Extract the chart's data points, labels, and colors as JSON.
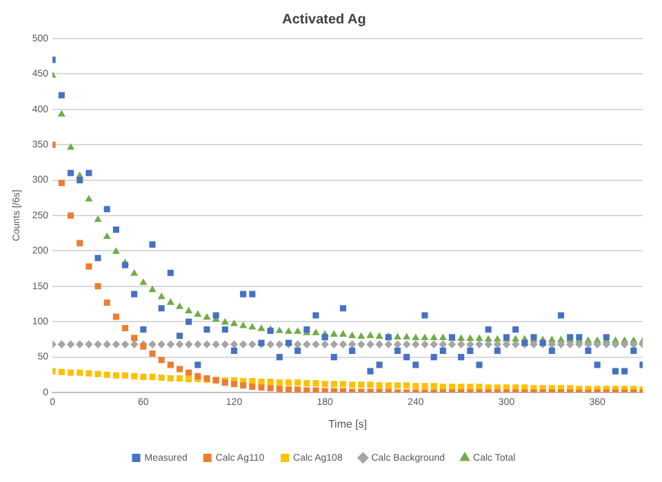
{
  "chart_data": {
    "type": "scatter",
    "title": "Activated Ag",
    "xlabel": "Time [s]",
    "ylabel": "Counts [/6s]",
    "x": [
      0,
      6,
      12,
      18,
      24,
      30,
      36,
      42,
      48,
      54,
      60,
      66,
      72,
      78,
      84,
      90,
      96,
      102,
      108,
      114,
      120,
      126,
      132,
      138,
      144,
      150,
      156,
      162,
      168,
      174,
      180,
      186,
      192,
      198,
      204,
      210,
      216,
      222,
      228,
      234,
      240,
      246,
      252,
      258,
      264,
      270,
      276,
      282,
      288,
      294,
      300,
      306,
      312,
      318,
      324,
      330,
      336,
      342,
      348,
      354,
      360,
      366,
      372,
      378,
      384,
      390
    ],
    "xlim": [
      0,
      390
    ],
    "xticks": [
      0,
      60,
      120,
      180,
      240,
      300,
      360
    ],
    "ylim": [
      0,
      500
    ],
    "yticks": [
      0,
      50,
      100,
      150,
      200,
      250,
      300,
      350,
      400,
      450,
      500
    ],
    "grid": "y",
    "legend": "bottom",
    "series": [
      {
        "name": "Measured",
        "color": "#4472c4",
        "marker": "square",
        "values": [
          470,
          420,
          310,
          300,
          310,
          190,
          259,
          230,
          180,
          139,
          89,
          209,
          119,
          169,
          80,
          100,
          39,
          89,
          109,
          89,
          59,
          139,
          139,
          70,
          87,
          50,
          70,
          59,
          89,
          109,
          78,
          50,
          119,
          59,
          null,
          30,
          39,
          78,
          59,
          50,
          39,
          109,
          50,
          59,
          78,
          50,
          59,
          39,
          89,
          59,
          78,
          89,
          70,
          78,
          70,
          59,
          109,
          78,
          78,
          59,
          39,
          78,
          30,
          30,
          59,
          39
        ]
      },
      {
        "name": "Calc Ag110",
        "color": "#ed7d31",
        "marker": "square",
        "values": [
          350,
          296,
          250,
          211,
          178,
          150,
          127,
          107,
          91,
          77,
          65,
          55,
          46,
          39,
          33,
          28,
          23,
          20,
          17,
          14,
          12,
          10,
          8,
          7,
          6,
          5,
          4,
          4,
          3,
          3,
          2,
          2,
          2,
          1,
          1,
          1,
          1,
          1,
          0,
          0,
          0,
          0,
          0,
          0,
          0,
          0,
          0,
          0,
          0,
          0,
          0,
          0,
          0,
          0,
          0,
          0,
          0,
          0,
          0,
          0,
          0,
          0,
          0,
          0,
          0,
          0
        ]
      },
      {
        "name": "Calc Ag108",
        "color": "#ffc000",
        "marker": "square",
        "values": [
          30,
          29,
          28,
          28,
          27,
          26,
          25,
          24,
          24,
          23,
          22,
          22,
          21,
          20,
          20,
          19,
          19,
          18,
          18,
          17,
          17,
          16,
          16,
          15,
          15,
          14,
          14,
          14,
          13,
          13,
          12,
          12,
          12,
          11,
          11,
          11,
          10,
          10,
          10,
          10,
          9,
          9,
          9,
          8,
          8,
          8,
          8,
          8,
          7,
          7,
          7,
          7,
          7,
          6,
          6,
          6,
          6,
          6,
          5,
          5,
          5,
          5,
          5,
          5,
          5,
          4
        ]
      },
      {
        "name": "Calc Background",
        "color": "#a5a5a5",
        "marker": "diamond",
        "values": [
          68,
          68,
          68,
          68,
          68,
          68,
          68,
          68,
          68,
          68,
          68,
          68,
          68,
          68,
          68,
          68,
          68,
          68,
          68,
          68,
          68,
          68,
          68,
          68,
          68,
          68,
          68,
          68,
          68,
          68,
          68,
          68,
          68,
          68,
          68,
          68,
          68,
          68,
          68,
          68,
          68,
          68,
          68,
          68,
          68,
          68,
          68,
          68,
          68,
          68,
          68,
          68,
          68,
          68,
          68,
          68,
          68,
          68,
          68,
          68,
          68,
          68,
          68,
          68,
          68,
          68
        ]
      },
      {
        "name": "Calc Total",
        "color": "#70ad47",
        "marker": "triangle",
        "values": [
          448,
          393,
          346,
          306,
          273,
          244,
          220,
          199,
          183,
          168,
          155,
          145,
          135,
          127,
          121,
          115,
          110,
          106,
          103,
          99,
          97,
          94,
          92,
          90,
          89,
          87,
          86,
          86,
          84,
          84,
          82,
          82,
          82,
          80,
          79,
          80,
          79,
          79,
          78,
          78,
          77,
          77,
          77,
          77,
          76,
          76,
          76,
          76,
          75,
          75,
          75,
          75,
          75,
          74,
          74,
          74,
          74,
          74,
          73,
          73,
          73,
          73,
          73,
          73,
          73,
          72
        ]
      }
    ]
  }
}
